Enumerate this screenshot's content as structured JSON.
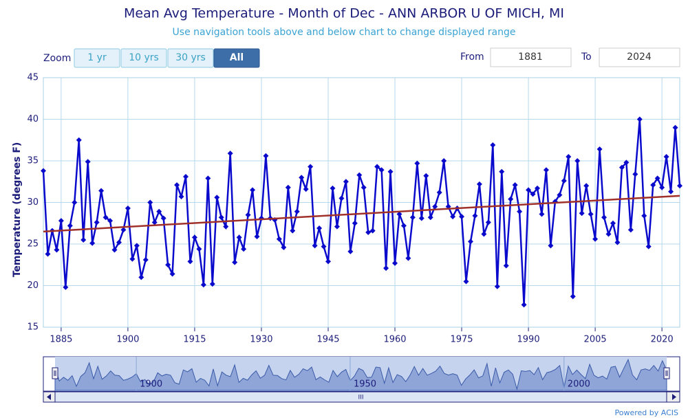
{
  "chart_data": {
    "type": "line",
    "title": "Mean Avg Temperature - Month of Dec - ANN ARBOR U OF MICH, MI",
    "subtitle": "Use navigation tools above and below chart to change displayed range",
    "y_label": "Temperature (degrees F)",
    "x": [
      1881,
      1882,
      1883,
      1884,
      1885,
      1886,
      1887,
      1888,
      1889,
      1890,
      1891,
      1892,
      1893,
      1894,
      1895,
      1896,
      1897,
      1898,
      1899,
      1900,
      1901,
      1902,
      1903,
      1904,
      1905,
      1906,
      1907,
      1908,
      1909,
      1910,
      1911,
      1912,
      1913,
      1914,
      1915,
      1916,
      1917,
      1918,
      1919,
      1920,
      1921,
      1922,
      1923,
      1924,
      1925,
      1926,
      1927,
      1928,
      1929,
      1930,
      1931,
      1932,
      1933,
      1934,
      1935,
      1936,
      1937,
      1938,
      1939,
      1940,
      1941,
      1942,
      1943,
      1944,
      1945,
      1946,
      1947,
      1948,
      1949,
      1950,
      1951,
      1952,
      1953,
      1954,
      1955,
      1956,
      1957,
      1958,
      1959,
      1960,
      1961,
      1962,
      1963,
      1964,
      1965,
      1966,
      1967,
      1968,
      1969,
      1970,
      1971,
      1972,
      1973,
      1974,
      1975,
      1976,
      1977,
      1978,
      1979,
      1980,
      1981,
      1982,
      1983,
      1984,
      1985,
      1986,
      1987,
      1988,
      1989,
      1990,
      1991,
      1992,
      1993,
      1994,
      1995,
      1996,
      1997,
      1998,
      1999,
      2000,
      2001,
      2002,
      2003,
      2004,
      2005,
      2006,
      2007,
      2008,
      2009,
      2010,
      2011,
      2012,
      2013,
      2014,
      2015,
      2016,
      2017,
      2018,
      2019,
      2020,
      2021,
      2022,
      2023,
      2024
    ],
    "values": [
      33.8,
      23.8,
      26.6,
      24.3,
      27.8,
      19.8,
      27.2,
      30.0,
      37.5,
      25.5,
      34.9,
      25.1,
      27.6,
      31.4,
      28.2,
      27.8,
      24.3,
      25.2,
      26.7,
      29.3,
      23.2,
      24.8,
      21.0,
      23.1,
      30.0,
      27.6,
      28.9,
      28.1,
      22.5,
      21.4,
      32.1,
      30.7,
      33.1,
      22.9,
      25.8,
      24.4,
      20.1,
      32.9,
      20.2,
      30.6,
      28.2,
      27.1,
      35.9,
      22.8,
      25.8,
      24.4,
      28.5,
      31.5,
      25.9,
      28.1,
      35.6,
      28.1,
      27.9,
      25.6,
      24.6,
      31.8,
      26.6,
      28.9,
      33.0,
      31.6,
      34.3,
      24.8,
      26.9,
      24.7,
      22.9,
      31.7,
      27.1,
      30.5,
      32.5,
      24.1,
      27.5,
      33.3,
      31.8,
      26.4,
      26.6,
      34.3,
      33.9,
      22.1,
      33.7,
      22.7,
      28.6,
      27.2,
      23.3,
      28.2,
      34.7,
      28.1,
      33.2,
      28.2,
      29.5,
      31.2,
      35.0,
      29.5,
      28.3,
      29.3,
      28.3,
      20.5,
      25.3,
      28.4,
      32.2,
      26.2,
      27.6,
      36.9,
      19.9,
      33.7,
      22.4,
      30.4,
      32.1,
      28.9,
      17.7,
      31.5,
      31.0,
      31.7,
      28.6,
      33.9,
      24.8,
      30.1,
      30.9,
      32.6,
      35.5,
      18.7,
      35.0,
      28.7,
      32.0,
      28.6,
      25.6,
      36.4,
      28.2,
      26.2,
      27.5,
      25.2,
      34.2,
      34.8,
      26.7,
      33.4,
      40.0,
      28.4,
      24.7,
      32.1,
      32.9,
      31.8,
      35.5,
      31.3,
      39.0,
      32.0
    ],
    "color": "#0a0acc",
    "trend": {
      "color": "#a0302a",
      "x": [
        1881,
        2024
      ],
      "values": [
        26.5,
        30.8
      ]
    },
    "xlim": [
      1881,
      2024
    ],
    "xticks": [
      1885,
      1900,
      1915,
      1930,
      1945,
      1960,
      1975,
      1990,
      2005,
      2020
    ],
    "ylim": [
      15,
      45
    ],
    "yticks": [
      15,
      20,
      25,
      30,
      35,
      40,
      45
    ],
    "grid": true,
    "navigator": {
      "xticks": [
        1900,
        1950,
        2000
      ]
    }
  },
  "ui": {
    "zoom_label": "Zoom",
    "buttons": [
      "1 yr",
      "10 yrs",
      "30 yrs",
      "All"
    ],
    "active": 3,
    "from_label": "From",
    "from_value": "1881",
    "to_label": "To",
    "to_value": "2024",
    "scroll_grip": "III",
    "credit": "Powered by ACIS"
  }
}
